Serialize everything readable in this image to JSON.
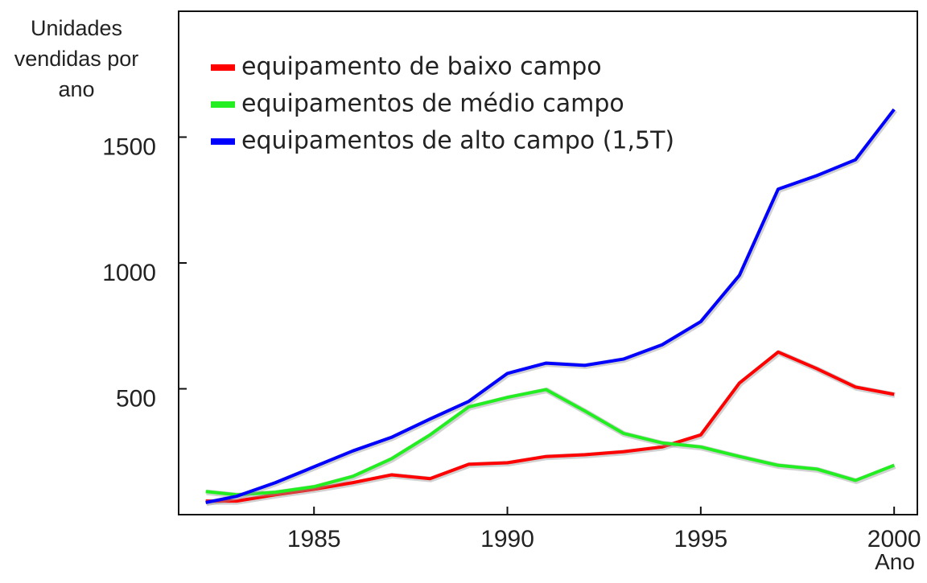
{
  "chart_data": {
    "type": "line",
    "ylabel": "Unidades vendidas por ano",
    "xlabel": "Ano",
    "x": [
      1982.2,
      1983,
      1984,
      1985,
      1986,
      1987,
      1988,
      1989,
      1990,
      1991,
      1992,
      1993,
      1994,
      1995,
      1996,
      1997,
      1998,
      1999,
      2000
    ],
    "series": [
      {
        "name": "equipamento de baixo campo",
        "color": "#ff0000",
        "values": [
          54,
          54,
          79,
          101,
          127,
          158,
          143,
          200,
          206,
          231,
          238,
          250,
          269,
          317,
          523,
          646,
          580,
          507,
          478
        ]
      },
      {
        "name": "equipamentos de médio campo",
        "color": "#22ee22",
        "values": [
          92,
          79,
          89,
          111,
          152,
          222,
          317,
          428,
          466,
          497,
          412,
          323,
          285,
          269,
          231,
          196,
          181,
          136,
          196
        ]
      },
      {
        "name": "equipamentos de alto campo (1,5T)",
        "color": "#0000ff",
        "values": [
          48,
          73,
          127,
          190,
          253,
          307,
          380,
          450,
          561,
          602,
          593,
          618,
          675,
          767,
          951,
          1293,
          1347,
          1410,
          1610
        ]
      }
    ],
    "xlim": [
      1981.5,
      2000.6
    ],
    "ylim": [
      0,
      2000
    ],
    "xticks": [
      1985,
      1990,
      1995,
      2000
    ],
    "yticks": [
      500,
      1000,
      1500
    ],
    "legend": "upper left",
    "grid": false
  }
}
